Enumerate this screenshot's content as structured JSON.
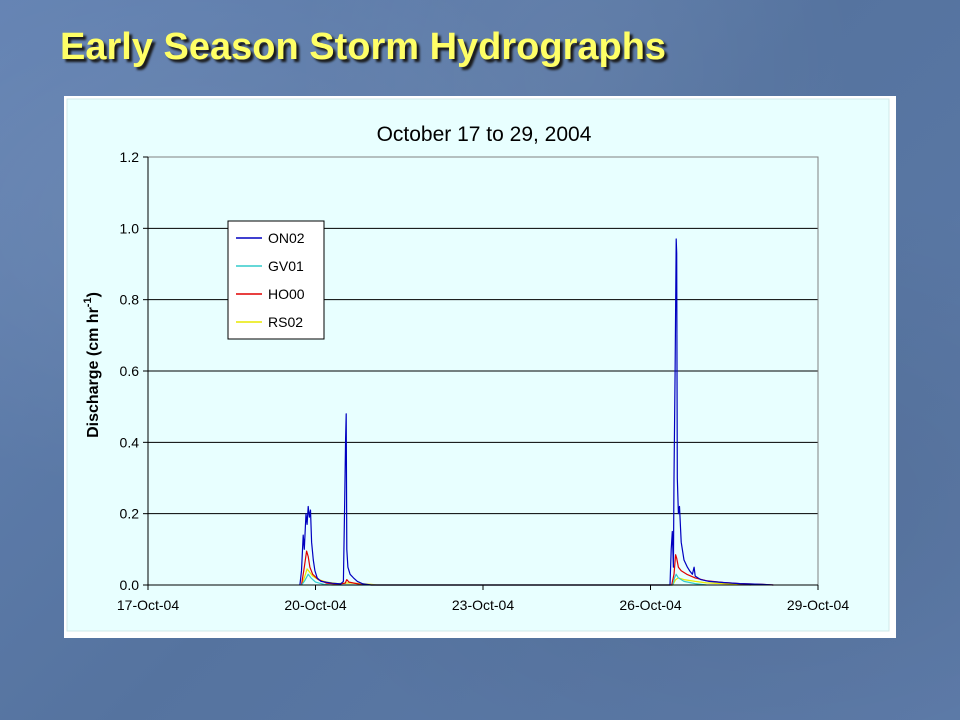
{
  "slide": {
    "title": "Early Season Storm Hydrographs"
  },
  "chart_data": {
    "type": "line",
    "title": "October 17 to 29, 2004",
    "ylabel_main": "Discharge (cm hr",
    "ylabel_sup": "-1",
    "ylabel_close": ")",
    "xlabel": "",
    "ylim": [
      0,
      1.2
    ],
    "yticks": [
      "0.0",
      "0.2",
      "0.4",
      "0.6",
      "0.8",
      "1.0",
      "1.2"
    ],
    "xlim": [
      17,
      29
    ],
    "xticks": [
      {
        "x": 17,
        "label": "17-Oct-04"
      },
      {
        "x": 20,
        "label": "20-Oct-04"
      },
      {
        "x": 23,
        "label": "23-Oct-04"
      },
      {
        "x": 26,
        "label": "26-Oct-04"
      },
      {
        "x": 29,
        "label": "29-Oct-04"
      }
    ],
    "grid": "horizontal",
    "legend_position": "upper-left",
    "plot_background": "#e8ffff",
    "series": [
      {
        "name": "ON02",
        "color": "#0000c0",
        "points": [
          [
            19.72,
            0
          ],
          [
            19.75,
            0.04
          ],
          [
            19.78,
            0.14
          ],
          [
            19.8,
            0.1
          ],
          [
            19.83,
            0.2
          ],
          [
            19.85,
            0.17
          ],
          [
            19.87,
            0.22
          ],
          [
            19.89,
            0.19
          ],
          [
            19.91,
            0.21
          ],
          [
            19.93,
            0.12
          ],
          [
            19.96,
            0.07
          ],
          [
            19.99,
            0.04
          ],
          [
            20.03,
            0.02
          ],
          [
            20.1,
            0.01
          ],
          [
            20.3,
            0.005
          ],
          [
            20.45,
            0.003
          ],
          [
            20.5,
            0.01
          ],
          [
            20.52,
            0.2
          ],
          [
            20.54,
            0.41
          ],
          [
            20.55,
            0.48
          ],
          [
            20.56,
            0.1
          ],
          [
            20.58,
            0.05
          ],
          [
            20.62,
            0.03
          ],
          [
            20.68,
            0.02
          ],
          [
            20.75,
            0.01
          ],
          [
            20.85,
            0.003
          ],
          [
            21.0,
            0
          ],
          [
            26.35,
            0
          ],
          [
            26.37,
            0.1
          ],
          [
            26.39,
            0.15
          ],
          [
            26.41,
            0.05
          ],
          [
            26.42,
            0.3
          ],
          [
            26.44,
            0.6
          ],
          [
            26.46,
            0.97
          ],
          [
            26.47,
            0.93
          ],
          [
            26.48,
            0.3
          ],
          [
            26.5,
            0.2
          ],
          [
            26.52,
            0.22
          ],
          [
            26.55,
            0.12
          ],
          [
            26.6,
            0.07
          ],
          [
            26.66,
            0.05
          ],
          [
            26.7,
            0.04
          ],
          [
            26.75,
            0.03
          ],
          [
            26.78,
            0.05
          ],
          [
            26.8,
            0.025
          ],
          [
            26.9,
            0.015
          ],
          [
            27.05,
            0.01
          ],
          [
            27.3,
            0.007
          ],
          [
            27.6,
            0.004
          ],
          [
            28.0,
            0.002
          ],
          [
            28.2,
            0
          ]
        ]
      },
      {
        "name": "GV01",
        "color": "#33cccc",
        "points": [
          [
            19.75,
            0
          ],
          [
            19.8,
            0.01
          ],
          [
            19.87,
            0.03
          ],
          [
            19.92,
            0.02
          ],
          [
            20.0,
            0.008
          ],
          [
            20.15,
            0.002
          ],
          [
            20.3,
            0
          ],
          [
            26.4,
            0
          ],
          [
            26.43,
            0.02
          ],
          [
            26.46,
            0.03
          ],
          [
            26.5,
            0.02
          ],
          [
            26.6,
            0.01
          ],
          [
            26.8,
            0.004
          ],
          [
            27.0,
            0
          ]
        ]
      },
      {
        "name": "HO00",
        "color": "#e00000",
        "points": [
          [
            19.75,
            0
          ],
          [
            19.8,
            0.05
          ],
          [
            19.84,
            0.095
          ],
          [
            19.87,
            0.08
          ],
          [
            19.9,
            0.05
          ],
          [
            19.95,
            0.03
          ],
          [
            20.05,
            0.015
          ],
          [
            20.2,
            0.005
          ],
          [
            20.4,
            0.002
          ],
          [
            20.53,
            0.005
          ],
          [
            20.56,
            0.015
          ],
          [
            20.6,
            0.008
          ],
          [
            20.8,
            0.002
          ],
          [
            21.0,
            0
          ],
          [
            26.38,
            0
          ],
          [
            26.42,
            0.03
          ],
          [
            26.45,
            0.085
          ],
          [
            26.47,
            0.075
          ],
          [
            26.5,
            0.05
          ],
          [
            26.55,
            0.04
          ],
          [
            26.65,
            0.03
          ],
          [
            26.8,
            0.02
          ],
          [
            27.0,
            0.012
          ],
          [
            27.3,
            0.007
          ],
          [
            27.6,
            0.004
          ],
          [
            28.0,
            0.002
          ],
          [
            28.2,
            0
          ]
        ]
      },
      {
        "name": "RS02",
        "color": "#e8e800",
        "points": [
          [
            19.75,
            0
          ],
          [
            19.8,
            0.02
          ],
          [
            19.85,
            0.045
          ],
          [
            19.9,
            0.035
          ],
          [
            19.95,
            0.025
          ],
          [
            20.05,
            0.015
          ],
          [
            20.2,
            0.008
          ],
          [
            20.4,
            0.004
          ],
          [
            20.6,
            0.006
          ],
          [
            20.8,
            0.004
          ],
          [
            21.0,
            0.002
          ],
          [
            21.1,
            0
          ],
          [
            26.4,
            0
          ],
          [
            26.45,
            0.015
          ],
          [
            26.5,
            0.02
          ],
          [
            26.6,
            0.015
          ],
          [
            26.8,
            0.01
          ],
          [
            27.0,
            0.006
          ],
          [
            27.4,
            0.003
          ],
          [
            27.8,
            0
          ]
        ]
      }
    ]
  }
}
